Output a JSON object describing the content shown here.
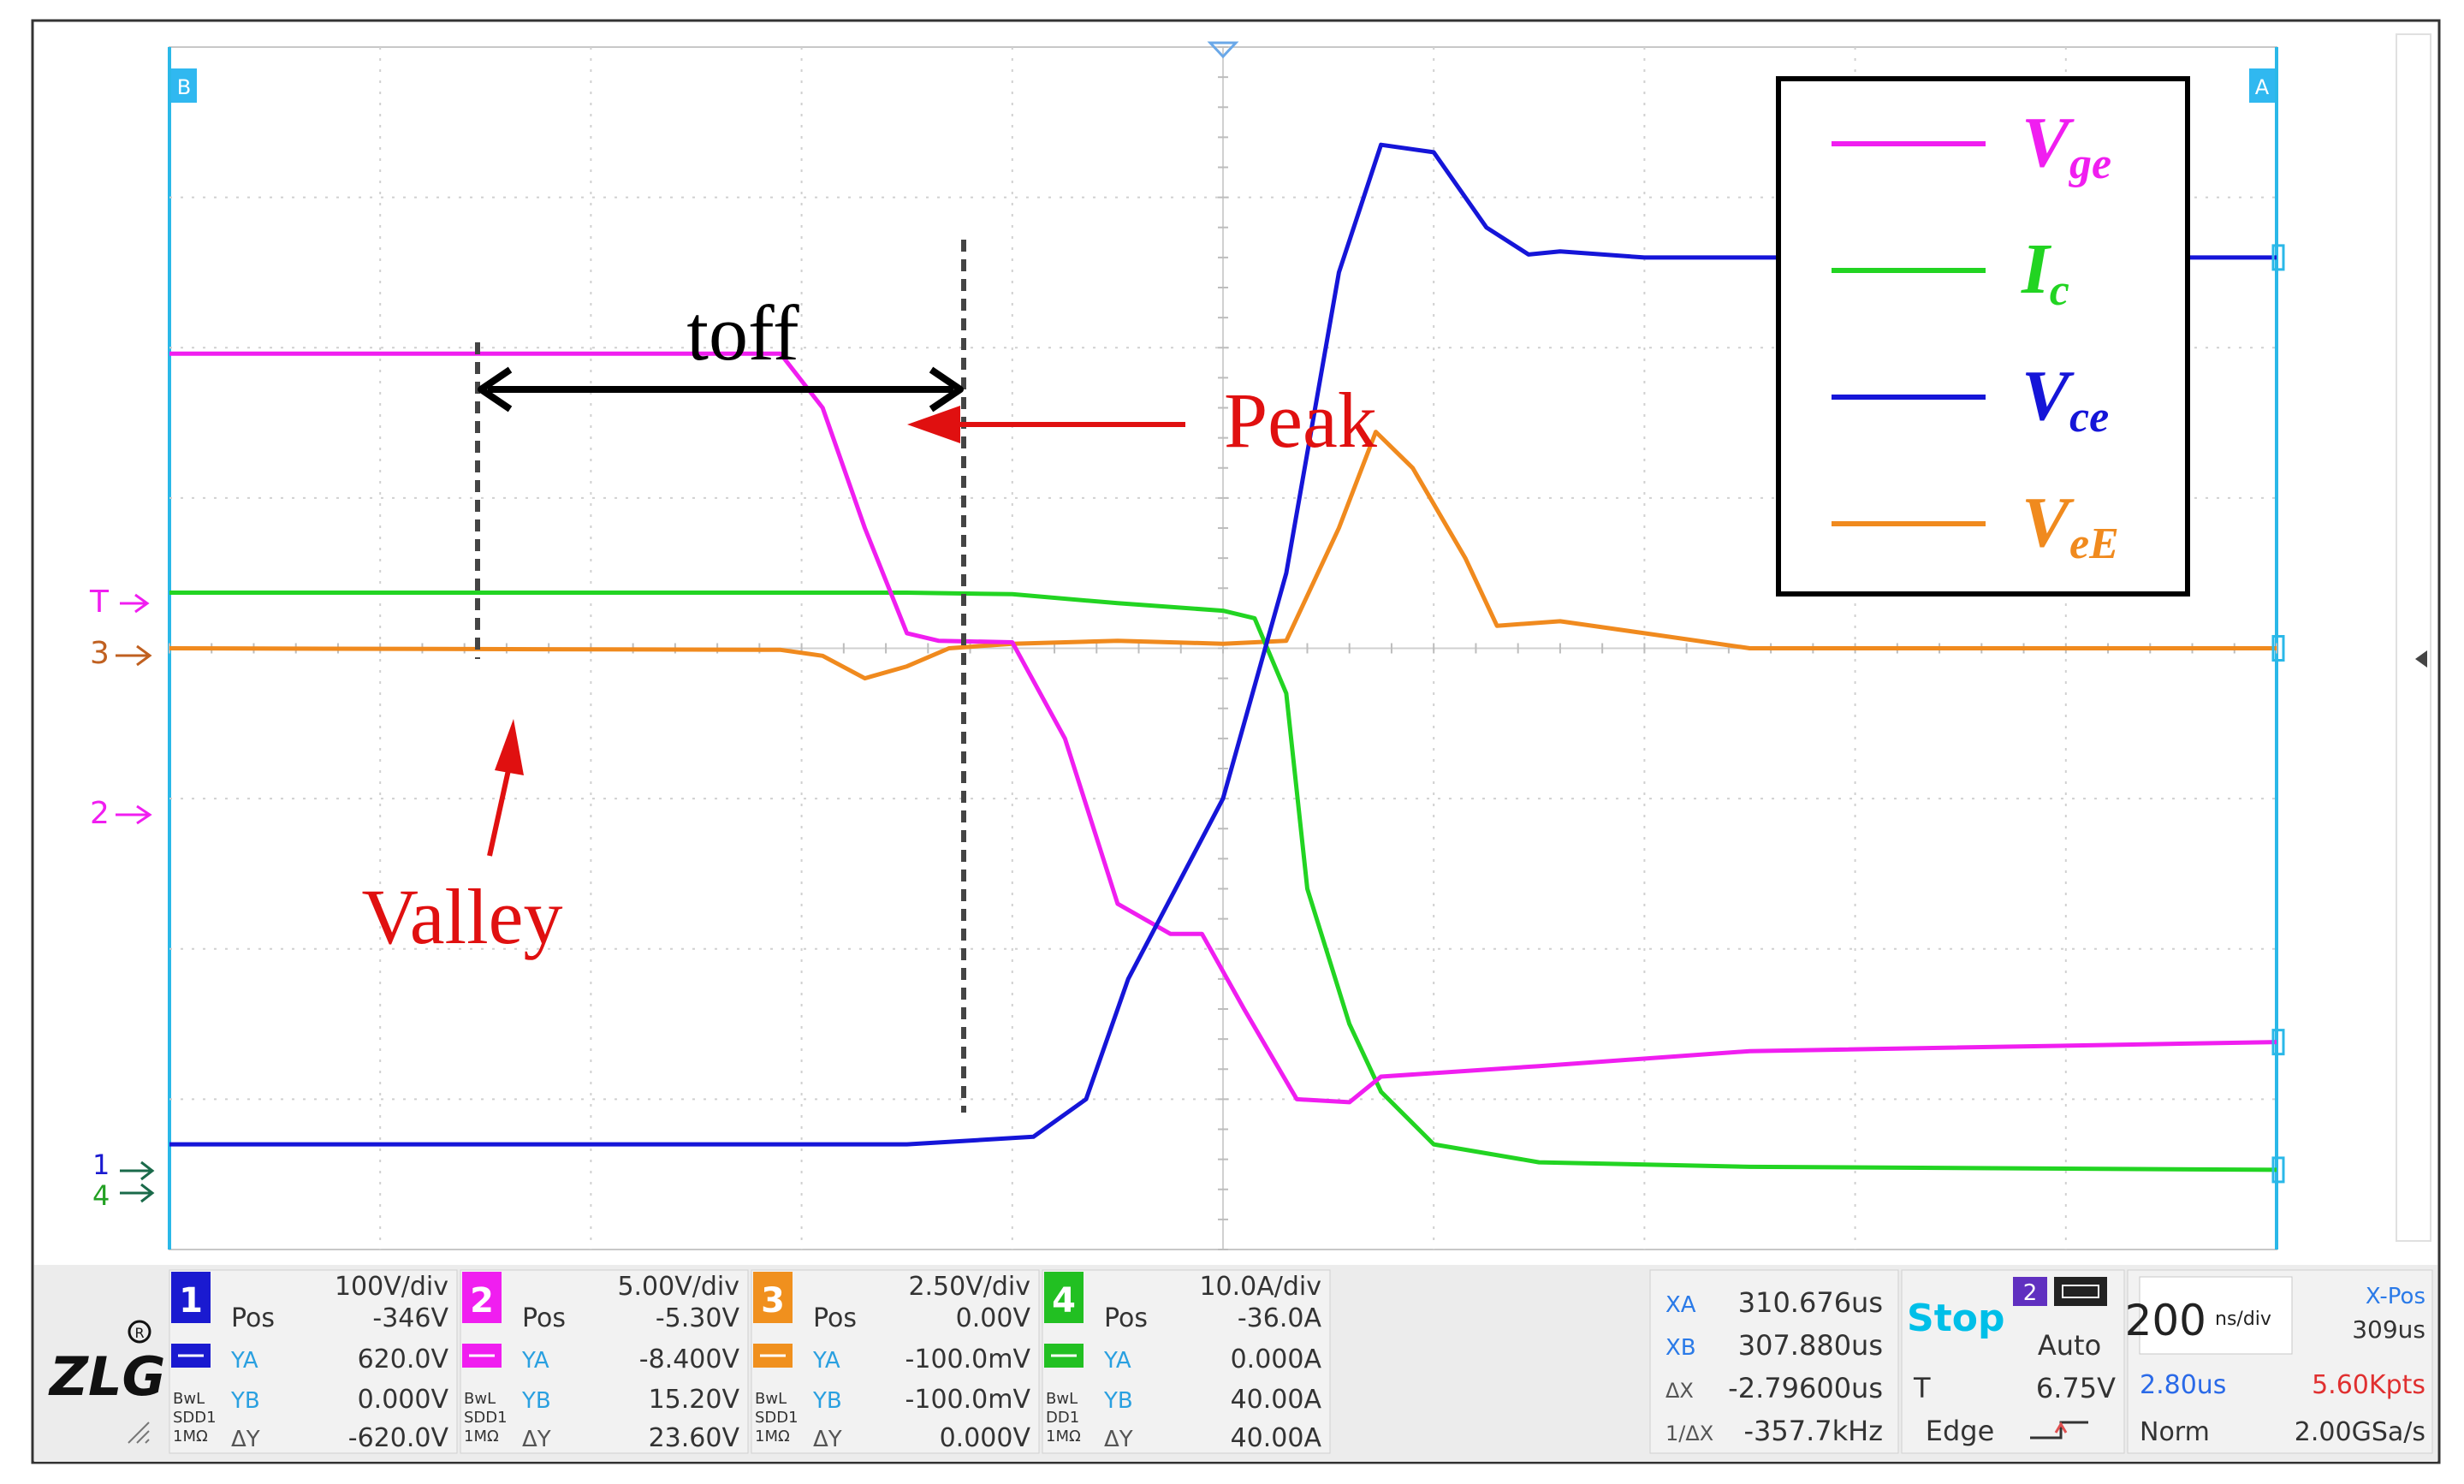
{
  "annotations": {
    "toff": "toff",
    "peak": "Peak",
    "valley": "Valley"
  },
  "legend": {
    "items": [
      {
        "main": "V",
        "sub": "ge",
        "color": "#f01ef0"
      },
      {
        "main": "I",
        "sub": "c",
        "color": "#22d422"
      },
      {
        "main": "V",
        "sub": "ce",
        "color": "#1515d8"
      },
      {
        "main": "V",
        "sub": "eE",
        "color": "#f08a1e"
      }
    ]
  },
  "markers": {
    "top_left": "B",
    "top_right": "A",
    "trigger": "T",
    "ch3": "3",
    "ch2": "2",
    "ch1": "1",
    "ch4": "4"
  },
  "channels": [
    {
      "num": "1",
      "color": "#1a1ad0",
      "scale": "100V/div",
      "pos_label": "Pos",
      "pos": "-346V",
      "ya": "620.0V",
      "yb": "0.000V",
      "dy": "-620.0V",
      "bw": "BwL",
      "coupling": "SDD1",
      "imp": "1MΩ"
    },
    {
      "num": "2",
      "color": "#f01ef0",
      "scale": "5.00V/div",
      "pos_label": "Pos",
      "pos": "-5.30V",
      "ya": "-8.400V",
      "yb": "15.20V",
      "dy": "23.60V",
      "bw": "BwL",
      "coupling": "SDD1",
      "imp": "1MΩ"
    },
    {
      "num": "3",
      "color": "#f0901e",
      "scale": "2.50V/div",
      "pos_label": "Pos",
      "pos": "0.00V",
      "ya": "-100.0mV",
      "yb": "-100.0mV",
      "dy": "0.000V",
      "bw": "BwL",
      "coupling": "SDD1",
      "imp": "1MΩ"
    },
    {
      "num": "4",
      "color": "#22c022",
      "scale": "10.0A/div",
      "pos_label": "Pos",
      "pos": "-36.0A",
      "ya": "0.000A",
      "yb": "40.00A",
      "dy": "40.00A",
      "bw": "BwL",
      "coupling": "DD1",
      "imp": "1MΩ"
    }
  ],
  "cursor_labels": {
    "ya": "YA",
    "yb": "YB",
    "dy": "ΔY"
  },
  "cursors": {
    "xa_label": "XA",
    "xa": "310.676us",
    "xb_label": "XB",
    "xb": "307.880us",
    "dx_label": "ΔX",
    "dx": "-2.79600us",
    "inv_label": "1/ΔX",
    "inv": "-357.7kHz"
  },
  "run": {
    "status": "Stop",
    "chan": "2",
    "mode": "Auto",
    "trig_label": "T",
    "trig_level": "6.75V",
    "trig_type": "Edge"
  },
  "timebase": {
    "value": "200",
    "unit": "ns/div",
    "xpos_label": "X-Pos",
    "xpos": "309us",
    "span": "2.80us",
    "points": "5.60Kpts",
    "acq": "Norm",
    "rate": "2.00GSa/s"
  },
  "logo": "ZLG",
  "colors": {
    "vge": "#f01ef0",
    "ic": "#22d422",
    "vce": "#1515d8",
    "vee": "#f08a1e",
    "grid": "#d0d0d0",
    "annotation": "#e01010"
  },
  "chart_data": {
    "type": "line",
    "x_unit": "ns",
    "y_unit": "div",
    "xlim": [
      -1000,
      1000
    ],
    "ylim": [
      -4,
      4
    ],
    "grid": true,
    "legend_position": "top-right",
    "series": [
      {
        "name": "Vge",
        "color": "#f01ef0",
        "points": [
          [
            -1000,
            1.96
          ],
          [
            -420,
            1.96
          ],
          [
            -380,
            1.6
          ],
          [
            -340,
            0.8
          ],
          [
            -300,
            0.1
          ],
          [
            -270,
            0.05
          ],
          [
            -200,
            0.04
          ],
          [
            -150,
            -0.6
          ],
          [
            -100,
            -1.7
          ],
          [
            -50,
            -1.9
          ],
          [
            -20,
            -1.9
          ],
          [
            20,
            -2.4
          ],
          [
            70,
            -3.0
          ],
          [
            120,
            -3.02
          ],
          [
            150,
            -2.85
          ],
          [
            300,
            -2.78
          ],
          [
            500,
            -2.68
          ],
          [
            1000,
            -2.62
          ]
        ]
      },
      {
        "name": "Ic",
        "color": "#22d422",
        "points": [
          [
            -1000,
            0.37
          ],
          [
            -300,
            0.37
          ],
          [
            -200,
            0.36
          ],
          [
            -100,
            0.3
          ],
          [
            0,
            0.25
          ],
          [
            30,
            0.2
          ],
          [
            60,
            -0.3
          ],
          [
            80,
            -1.6
          ],
          [
            120,
            -2.5
          ],
          [
            150,
            -2.95
          ],
          [
            200,
            -3.3
          ],
          [
            300,
            -3.42
          ],
          [
            500,
            -3.45
          ],
          [
            1000,
            -3.47
          ]
        ]
      },
      {
        "name": "Vce",
        "color": "#1515d8",
        "points": [
          [
            -1000,
            -3.3
          ],
          [
            -300,
            -3.3
          ],
          [
            -180,
            -3.25
          ],
          [
            -130,
            -3.0
          ],
          [
            -90,
            -2.2
          ],
          [
            0,
            -1.0
          ],
          [
            60,
            0.5
          ],
          [
            110,
            2.5
          ],
          [
            150,
            3.35
          ],
          [
            200,
            3.3
          ],
          [
            250,
            2.8
          ],
          [
            290,
            2.62
          ],
          [
            320,
            2.64
          ],
          [
            400,
            2.6
          ],
          [
            1000,
            2.6
          ]
        ]
      },
      {
        "name": "VeE",
        "color": "#f08a1e",
        "points": [
          [
            -1000,
            0.0
          ],
          [
            -420,
            -0.01
          ],
          [
            -380,
            -0.05
          ],
          [
            -340,
            -0.2
          ],
          [
            -300,
            -0.12
          ],
          [
            -260,
            0.0
          ],
          [
            -200,
            0.03
          ],
          [
            -100,
            0.05
          ],
          [
            0,
            0.03
          ],
          [
            60,
            0.05
          ],
          [
            110,
            0.8
          ],
          [
            145,
            1.44
          ],
          [
            180,
            1.2
          ],
          [
            230,
            0.6
          ],
          [
            260,
            0.15
          ],
          [
            320,
            0.18
          ],
          [
            400,
            0.1
          ],
          [
            500,
            0.0
          ],
          [
            600,
            0.0
          ],
          [
            1000,
            0.0
          ]
        ]
      }
    ]
  }
}
